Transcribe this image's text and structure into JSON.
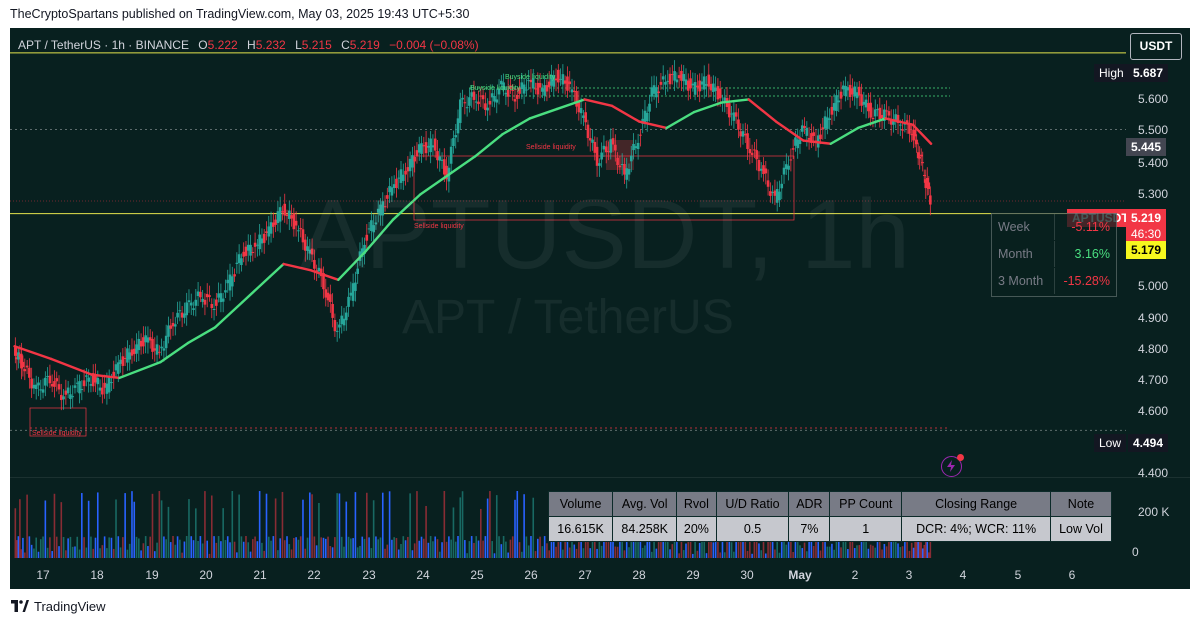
{
  "header": {
    "publisher_line": "TheCryptoSpartans published on TradingView.com, May 03, 2025 19:43 UTC+5:30"
  },
  "footer": {
    "brand": "TradingView"
  },
  "symbol_legend": {
    "title": "APT / TetherUS · 1h · BINANCE",
    "open_key": "O",
    "open": "5.222",
    "high_key": "H",
    "high": "5.232",
    "low_key": "L",
    "low": "5.215",
    "close_key": "C",
    "close": "5.219",
    "change": "−0.004 (−0.08%)"
  },
  "watermark": {
    "line1": "APTUSDT, 1h",
    "line2": "APT / TetherUS"
  },
  "currency_button": "USDT",
  "price_labels": {
    "high_tag": "High",
    "high_value": "5.687",
    "low_tag": "Low",
    "low_value": "4.494",
    "level_value": "5.445",
    "symbol_tag": "APTUSDT",
    "last_price": "5.219",
    "countdown": "46:30",
    "line_value": "5.179"
  },
  "performance": [
    {
      "label": "Week",
      "value": "-5.11%"
    },
    {
      "label": "Month",
      "value": "3.16%"
    },
    {
      "label": "3 Month",
      "value": "-15.28%"
    }
  ],
  "liquidity_labels": {
    "buyside_top": "Buyside liquidity",
    "buyside_second": "Buyside liquidity",
    "sellside_mid": "Sellside liquidity",
    "sellside_low": "Sellside liquidity",
    "sellside_bottom": "Sellside liquidity"
  },
  "stats_table": {
    "headers": [
      "Volume",
      "Avg. Vol",
      "Rvol",
      "U/D Ratio",
      "ADR",
      "PP Count",
      "Closing Range",
      "Note"
    ],
    "values": [
      "16.615K",
      "84.258K",
      "20%",
      "0.5",
      "7%",
      "1",
      "DCR: 4%; WCR: 11%",
      "Low Vol"
    ]
  },
  "volume_axis": {
    "ticks": [
      "200 K",
      "0"
    ]
  },
  "colors": {
    "background": "#08201f",
    "up": "#26a69a",
    "down": "#f23645",
    "ma_up": "#4ade80",
    "ma_down": "#f23645",
    "level_line": "#e3e34c",
    "volume_blue": "#2962ff"
  },
  "chart_data": {
    "type": "candlestick",
    "title": "APT / TetherUS · 1h · BINANCE",
    "ylim": [
      4.35,
      5.75
    ],
    "y_ticks": [
      "5.600",
      "5.500",
      "5.400",
      "5.300",
      "5.000",
      "4.900",
      "4.800",
      "4.700",
      "4.600",
      "4.400"
    ],
    "x_ticks": [
      "17",
      "18",
      "19",
      "20",
      "21",
      "22",
      "23",
      "24",
      "25",
      "26",
      "27",
      "28",
      "29",
      "30",
      "May",
      "2",
      "3",
      "4",
      "5",
      "6"
    ],
    "x_domain": [
      "Apr 16 18:00",
      "May 6 23:59"
    ],
    "grid": false,
    "series": [
      {
        "name": "APT/USDT close (approx, 1h)",
        "x": [
          "Apr 16 20:00",
          "Apr 17 00:00",
          "Apr 17 06:00",
          "Apr 17 12:00",
          "Apr 17 18:00",
          "Apr 18 00:00",
          "Apr 18 06:00",
          "Apr 18 12:00",
          "Apr 18 18:00",
          "Apr 19 00:00",
          "Apr 19 06:00",
          "Apr 19 12:00",
          "Apr 19 18:00",
          "Apr 20 00:00",
          "Apr 20 06:00",
          "Apr 20 12:00",
          "Apr 20 18:00",
          "Apr 21 00:00",
          "Apr 21 06:00",
          "Apr 21 12:00",
          "Apr 21 18:00",
          "Apr 22 00:00",
          "Apr 22 06:00",
          "Apr 22 12:00",
          "Apr 22 18:00",
          "Apr 23 00:00",
          "Apr 23 06:00",
          "Apr 23 12:00",
          "Apr 23 18:00",
          "Apr 24 00:00",
          "Apr 24 06:00",
          "Apr 24 12:00",
          "Apr 24 18:00",
          "Apr 25 00:00",
          "Apr 25 06:00",
          "Apr 25 12:00",
          "Apr 25 18:00",
          "Apr 26 00:00",
          "Apr 26 06:00",
          "Apr 26 12:00",
          "Apr 26 18:00",
          "Apr 27 00:00",
          "Apr 27 06:00",
          "Apr 27 12:00",
          "Apr 27 18:00",
          "Apr 28 00:00",
          "Apr 28 06:00",
          "Apr 28 12:00",
          "Apr 28 18:00",
          "Apr 29 00:00",
          "Apr 29 06:00",
          "Apr 29 12:00",
          "Apr 29 18:00",
          "Apr 30 00:00",
          "Apr 30 06:00",
          "Apr 30 12:00",
          "Apr 30 18:00",
          "May 1 00:00",
          "May 1 06:00",
          "May 1 12:00",
          "May 1 18:00",
          "May 2 00:00",
          "May 2 06:00",
          "May 2 12:00",
          "May 2 18:00",
          "May 3 00:00",
          "May 3 06:00",
          "May 3 10:00",
          "May 3 14:00"
        ],
        "values": [
          4.75,
          4.7,
          4.62,
          4.66,
          4.6,
          4.63,
          4.66,
          4.62,
          4.7,
          4.75,
          4.78,
          4.74,
          4.84,
          4.88,
          4.92,
          4.89,
          4.95,
          5.05,
          5.08,
          5.12,
          5.2,
          5.14,
          5.05,
          4.96,
          4.8,
          4.92,
          5.1,
          5.18,
          5.26,
          5.32,
          5.38,
          5.4,
          5.3,
          5.52,
          5.55,
          5.52,
          5.58,
          5.55,
          5.6,
          5.56,
          5.62,
          5.58,
          5.48,
          5.35,
          5.4,
          5.3,
          5.42,
          5.56,
          5.6,
          5.62,
          5.57,
          5.6,
          5.55,
          5.48,
          5.4,
          5.32,
          5.22,
          5.35,
          5.45,
          5.4,
          5.5,
          5.57,
          5.56,
          5.5,
          5.49,
          5.47,
          5.44,
          5.34,
          5.219
        ]
      },
      {
        "name": "Moving average (approx)",
        "x": [
          "Apr 16 20:00",
          "Apr 17 12:00",
          "Apr 18 06:00",
          "Apr 18 18:00",
          "Apr 19 12:00",
          "Apr 20 00:00",
          "Apr 20 12:00",
          "Apr 21 00:00",
          "Apr 21 12:00",
          "Apr 21 18:00",
          "Apr 22 06:00",
          "Apr 22 18:00",
          "Apr 23 06:00",
          "Apr 23 18:00",
          "Apr 24 06:00",
          "Apr 24 18:00",
          "Apr 25 06:00",
          "Apr 25 18:00",
          "Apr 26 06:00",
          "Apr 26 18:00",
          "Apr 27 06:00",
          "Apr 27 18:00",
          "Apr 28 06:00",
          "Apr 28 18:00",
          "Apr 29 06:00",
          "Apr 29 18:00",
          "Apr 30 06:00",
          "Apr 30 18:00",
          "May 1 06:00",
          "May 1 18:00",
          "May 2 06:00",
          "May 2 18:00",
          "May 3 06:00",
          "May 3 14:00"
        ],
        "values": [
          4.76,
          4.72,
          4.67,
          4.66,
          4.71,
          4.77,
          4.82,
          4.9,
          4.98,
          5.02,
          5.0,
          4.97,
          5.06,
          5.16,
          5.24,
          5.3,
          5.36,
          5.43,
          5.48,
          5.51,
          5.54,
          5.52,
          5.47,
          5.45,
          5.5,
          5.53,
          5.54,
          5.47,
          5.41,
          5.4,
          5.45,
          5.48,
          5.46,
          5.4
        ]
      }
    ],
    "volume_series": {
      "name": "Volume",
      "ylim": [
        0,
        300000
      ],
      "ticks": [
        200000,
        0
      ]
    },
    "levels": [
      {
        "name": "High",
        "value": 5.687
      },
      {
        "value": 5.445
      },
      {
        "value": 5.179
      },
      {
        "name": "Low",
        "value": 4.494
      }
    ]
  }
}
